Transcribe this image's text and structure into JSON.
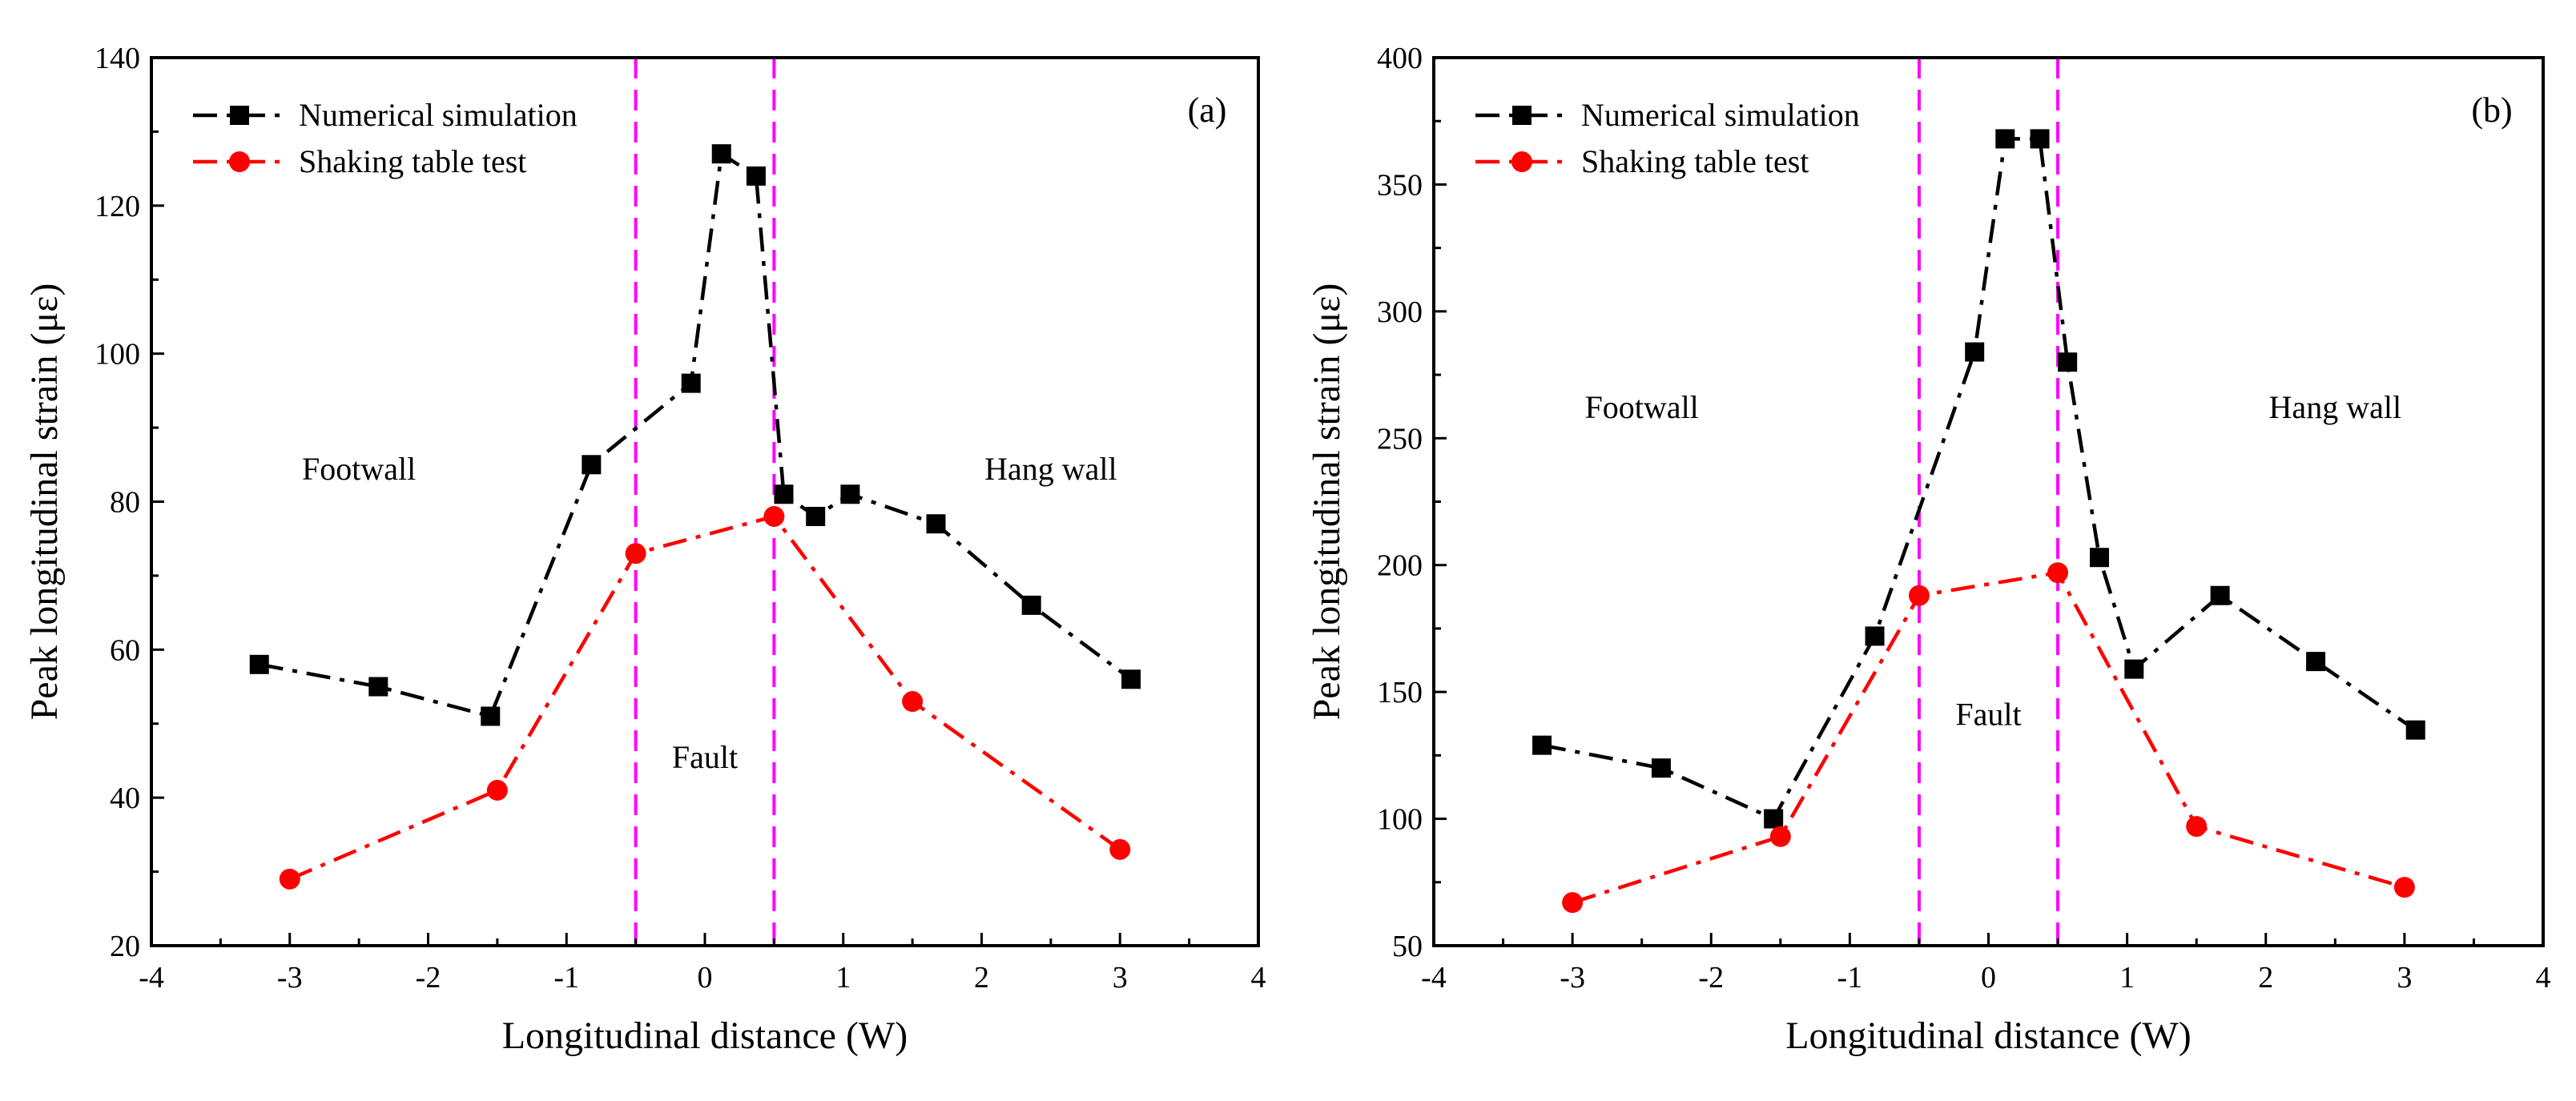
{
  "chart_data": [
    {
      "type": "line",
      "panel_label": "(a)",
      "xlabel": "Longitudinal distance (W)",
      "ylabel": "Peak longitudinal strain (με)",
      "xlim": [
        -4,
        4
      ],
      "ylim": [
        20,
        140
      ],
      "xticks": [
        -4,
        -3,
        -2,
        -1,
        0,
        1,
        2,
        3,
        4
      ],
      "yticks": [
        20,
        40,
        60,
        80,
        100,
        120,
        140
      ],
      "grid": false,
      "legend_position": "top-left",
      "fault_lines_x": [
        -0.5,
        0.5
      ],
      "region_labels": [
        {
          "text": "Footwall",
          "x": -2.5,
          "y": 83
        },
        {
          "text": "Fault",
          "x": 0,
          "y": 44
        },
        {
          "text": "Hang wall",
          "x": 2.5,
          "y": 83
        }
      ],
      "series": [
        {
          "name": "Numerical simulation",
          "color": "#000000",
          "marker": "square",
          "x": [
            -3.22,
            -2.36,
            -1.55,
            -0.82,
            -0.1,
            0.12,
            0.37,
            0.57,
            0.8,
            1.05,
            1.67,
            2.36,
            3.08
          ],
          "y": [
            58,
            55,
            51,
            85,
            96,
            127,
            124,
            81,
            78,
            81,
            77,
            66,
            56
          ]
        },
        {
          "name": "Shaking table test",
          "color": "#ff0000",
          "marker": "circle",
          "x": [
            -3,
            -1.5,
            -0.5,
            0.5,
            1.5,
            3
          ],
          "y": [
            29,
            41,
            73,
            78,
            53,
            33
          ]
        }
      ]
    },
    {
      "type": "line",
      "panel_label": "(b)",
      "xlabel": "Longitudinal distance (W)",
      "ylabel": "Peak longitudinal strain (με)",
      "xlim": [
        -4,
        4
      ],
      "ylim": [
        50,
        400
      ],
      "xticks": [
        -4,
        -3,
        -2,
        -1,
        0,
        1,
        2,
        3,
        4
      ],
      "yticks": [
        50,
        100,
        150,
        200,
        250,
        300,
        350,
        400
      ],
      "grid": false,
      "legend_position": "top-left",
      "fault_lines_x": [
        -0.5,
        0.5
      ],
      "region_labels": [
        {
          "text": "Footwall",
          "x": -2.5,
          "y": 258
        },
        {
          "text": "Fault",
          "x": 0,
          "y": 137
        },
        {
          "text": "Hang wall",
          "x": 2.5,
          "y": 258
        }
      ],
      "series": [
        {
          "name": "Numerical simulation",
          "color": "#000000",
          "marker": "square",
          "x": [
            -3.22,
            -2.36,
            -1.55,
            -0.82,
            -0.1,
            0.12,
            0.37,
            0.57,
            0.8,
            1.05,
            1.67,
            2.36,
            3.08
          ],
          "y": [
            129,
            120,
            100,
            172,
            284,
            368,
            368,
            280,
            203,
            159,
            188,
            162,
            135
          ]
        },
        {
          "name": "Shaking table test",
          "color": "#ff0000",
          "marker": "circle",
          "x": [
            -3,
            -1.5,
            -0.5,
            0.5,
            1.5,
            3
          ],
          "y": [
            67,
            93,
            188,
            197,
            97,
            73
          ]
        }
      ]
    }
  ],
  "fault_line_color": "#ff00ff"
}
